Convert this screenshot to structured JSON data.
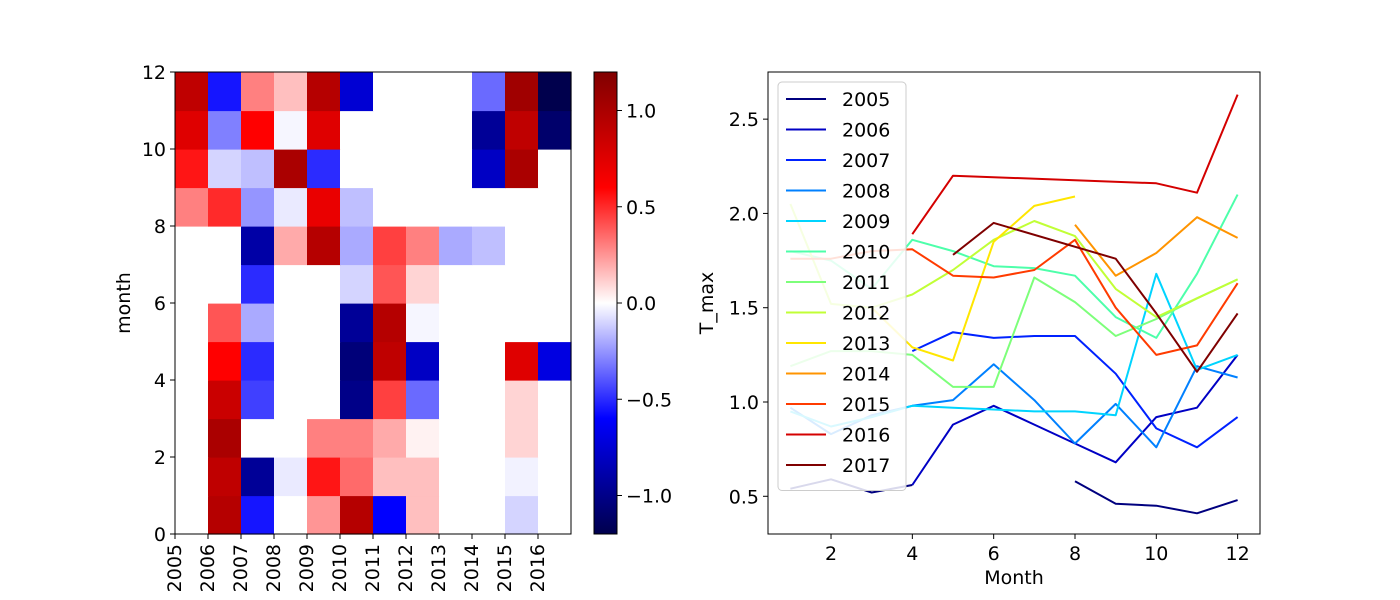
{
  "chart_data": [
    {
      "type": "heatmap",
      "xlabel": "",
      "ylabel": "month",
      "x_categories": [
        "2005",
        "2006",
        "2007",
        "2008",
        "2009",
        "2010",
        "2011",
        "2012",
        "2013",
        "2014",
        "2015",
        "2016"
      ],
      "y_ticks": [
        0,
        2,
        4,
        6,
        8,
        10,
        12
      ],
      "ylim": [
        0,
        12
      ],
      "colormap": "seismic",
      "color_limits": [
        -1.2,
        1.2
      ],
      "colorbar_ticks": [
        1.0,
        0.5,
        0.0,
        -0.5,
        -1.0
      ],
      "colorbar_tick_labels": [
        "1.0",
        "0.5",
        "0.0",
        "−0.5",
        "−1.0"
      ],
      "rows_month_1_to_12": [
        [
          0,
          0.95,
          -0.55,
          0,
          0.25,
          0.95,
          -0.6,
          0.15,
          0,
          0,
          -0.1,
          0
        ],
        [
          0,
          0.9,
          -0.95,
          -0.05,
          0.55,
          0.35,
          0.15,
          0.15,
          0,
          0,
          -0.03,
          0
        ],
        [
          0,
          1.0,
          0,
          0,
          0.3,
          0.3,
          0.2,
          0.03,
          0,
          0,
          0.1,
          0
        ],
        [
          0,
          0.85,
          -0.45,
          0,
          0,
          -1.0,
          0.45,
          -0.35,
          0,
          0,
          0.1,
          0
        ],
        [
          0,
          0.6,
          -0.5,
          0,
          0,
          -1.05,
          0.9,
          -0.8,
          0,
          0,
          0.75,
          -0.7
        ],
        [
          0,
          0.4,
          -0.2,
          0,
          0,
          -0.95,
          0.95,
          -0.02,
          0,
          0,
          0,
          0
        ],
        [
          0,
          0,
          -0.5,
          0,
          0,
          -0.1,
          0.4,
          0.1,
          0,
          0,
          0,
          0
        ],
        [
          0,
          0,
          -0.9,
          0.2,
          0.95,
          -0.2,
          0.45,
          0.3,
          -0.2,
          -0.15,
          0,
          0
        ],
        [
          0.3,
          0.5,
          -0.25,
          -0.05,
          0.7,
          -0.15,
          0,
          0,
          0,
          0,
          0,
          0
        ],
        [
          0.55,
          -0.1,
          -0.15,
          1.0,
          -0.5,
          0,
          0,
          0,
          0,
          -0.8,
          1.0,
          0
        ],
        [
          0.75,
          -0.3,
          0.6,
          -0.02,
          0.75,
          0,
          0,
          0,
          0,
          -0.95,
          0.9,
          -1.1
        ],
        [
          0.9,
          -0.55,
          0.3,
          0.15,
          0.95,
          -0.75,
          0,
          0,
          0,
          -0.35,
          1.05,
          -1.2
        ]
      ]
    },
    {
      "type": "line",
      "xlabel": "Month",
      "ylabel": "T_max",
      "xlim": [
        0.45,
        12.55
      ],
      "ylim": [
        0.3,
        2.75
      ],
      "x_ticks": [
        2,
        4,
        6,
        8,
        10,
        12
      ],
      "y_ticks": [
        0.5,
        1.0,
        1.5,
        2.0,
        2.5
      ],
      "y_tick_labels": [
        "0.5",
        "1.0",
        "1.5",
        "2.0",
        "2.5"
      ],
      "legend_position": "upper-left",
      "series": [
        {
          "name": "2005",
          "color": "#00007f",
          "points": [
            [
              1,
              0.54
            ],
            [
              2,
              0.59
            ],
            [
              3,
              0.52
            ],
            [
              4,
              0.56
            ],
            [
              null,
              null
            ],
            [
              8,
              0.58
            ],
            [
              9,
              0.46
            ],
            [
              10,
              0.45
            ],
            [
              11,
              0.41
            ],
            [
              12,
              0.48
            ]
          ]
        },
        {
          "name": "2006",
          "color": "#0000c4",
          "points": [
            [
              4,
              0.56
            ],
            [
              5,
              0.88
            ],
            [
              6,
              0.98
            ],
            [
              7,
              0.88
            ],
            [
              8,
              0.78
            ],
            [
              9,
              0.68
            ],
            [
              10,
              0.92
            ],
            [
              11,
              0.97
            ],
            [
              12,
              1.25
            ]
          ]
        },
        {
          "name": "2007",
          "color": "#0022ff",
          "points": [
            [
              4,
              1.27
            ],
            [
              5,
              1.37
            ],
            [
              6,
              1.34
            ],
            [
              7,
              1.35
            ],
            [
              8,
              1.35
            ],
            [
              9,
              1.15
            ],
            [
              10,
              0.86
            ],
            [
              11,
              0.76
            ],
            [
              12,
              0.92
            ]
          ]
        },
        {
          "name": "2008",
          "color": "#0080ff",
          "points": [
            [
              1,
              0.97
            ],
            [
              2,
              0.83
            ],
            [
              3,
              0.93
            ],
            [
              4,
              0.98
            ],
            [
              5,
              1.01
            ],
            [
              6,
              1.2
            ],
            [
              7,
              1.01
            ],
            [
              8,
              0.78
            ],
            [
              9,
              0.99
            ],
            [
              10,
              0.76
            ],
            [
              11,
              1.19
            ],
            [
              12,
              1.13
            ]
          ]
        },
        {
          "name": "2009",
          "color": "#00d4ff",
          "points": [
            [
              1,
              0.95
            ],
            [
              2,
              0.87
            ],
            [
              3,
              0.92
            ],
            [
              4,
              0.98
            ],
            [
              5,
              0.97
            ],
            [
              6,
              0.96
            ],
            [
              7,
              0.95
            ],
            [
              8,
              0.95
            ],
            [
              9,
              0.93
            ],
            [
              10,
              1.68
            ],
            [
              11,
              1.17
            ],
            [
              12,
              1.25
            ]
          ]
        },
        {
          "name": "2010",
          "color": "#4dffaa",
          "points": [
            [
              1,
              1.8
            ],
            [
              2,
              1.75
            ],
            [
              3,
              1.6
            ],
            [
              4,
              1.86
            ],
            [
              5,
              1.8
            ],
            [
              6,
              1.72
            ],
            [
              7,
              1.71
            ],
            [
              8,
              1.67
            ],
            [
              9,
              1.45
            ],
            [
              10,
              1.34
            ],
            [
              11,
              1.68
            ],
            [
              12,
              2.1
            ]
          ]
        },
        {
          "name": "2011",
          "color": "#7dff7a",
          "points": [
            [
              1,
              1.19
            ],
            [
              2,
              1.27
            ],
            [
              3,
              1.27
            ],
            [
              4,
              1.25
            ],
            [
              5,
              1.08
            ],
            [
              6,
              1.08
            ],
            [
              7,
              1.66
            ],
            [
              8,
              1.53
            ],
            [
              9,
              1.35
            ],
            [
              10,
              1.44
            ],
            [
              11,
              1.55
            ],
            [
              12,
              1.65
            ]
          ]
        },
        {
          "name": "2012",
          "color": "#c1ff36",
          "points": [
            [
              1,
              2.05
            ],
            [
              2,
              1.52
            ],
            [
              3,
              1.5
            ],
            [
              4,
              1.57
            ],
            [
              5,
              1.7
            ],
            [
              6,
              1.86
            ],
            [
              7,
              1.96
            ],
            [
              8,
              1.88
            ],
            [
              9,
              1.6
            ],
            [
              10,
              1.45
            ],
            [
              11,
              1.55
            ],
            [
              12,
              1.65
            ]
          ]
        },
        {
          "name": "2013",
          "color": "#ffe600",
          "points": [
            [
              3,
              1.5
            ],
            [
              4,
              1.29
            ],
            [
              5,
              1.22
            ],
            [
              6,
              1.85
            ],
            [
              7,
              2.04
            ],
            [
              8,
              2.09
            ]
          ]
        },
        {
          "name": "2014",
          "color": "#ff9400",
          "points": [
            [
              8,
              1.94
            ],
            [
              9,
              1.67
            ],
            [
              10,
              1.79
            ],
            [
              11,
              1.98
            ],
            [
              12,
              1.87
            ]
          ]
        },
        {
          "name": "2015",
          "color": "#ff3b00",
          "points": [
            [
              1,
              1.76
            ],
            [
              2,
              1.76
            ],
            [
              3,
              1.8
            ],
            [
              4,
              1.81
            ],
            [
              5,
              1.67
            ],
            [
              6,
              1.66
            ],
            [
              7,
              1.7
            ],
            [
              8,
              1.86
            ],
            [
              9,
              1.5
            ],
            [
              10,
              1.25
            ],
            [
              11,
              1.3
            ],
            [
              12,
              1.63
            ]
          ]
        },
        {
          "name": "2016",
          "color": "#d40000",
          "points": [
            [
              4,
              1.89
            ],
            [
              5,
              2.2
            ],
            [
              10,
              2.16
            ],
            [
              11,
              2.11
            ],
            [
              12,
              2.63
            ]
          ]
        },
        {
          "name": "2017",
          "color": "#7f0000",
          "points": [
            [
              5,
              1.78
            ],
            [
              6,
              1.95
            ],
            [
              9,
              1.76
            ],
            [
              10,
              1.47
            ],
            [
              11,
              1.16
            ],
            [
              12,
              1.47
            ]
          ]
        }
      ]
    }
  ]
}
